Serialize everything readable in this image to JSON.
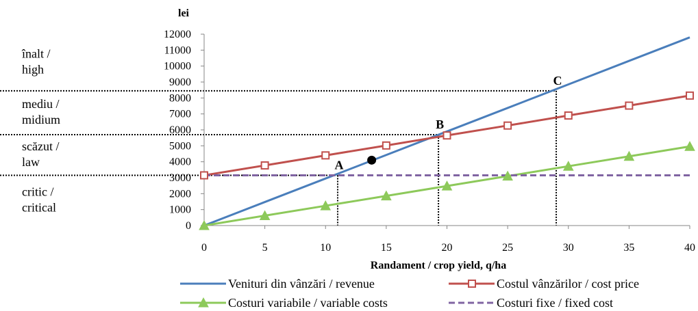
{
  "chart_data": {
    "type": "line",
    "ylabel": "lei",
    "xlabel": "Randament / crop yield, q/ha",
    "xlim": [
      0,
      40
    ],
    "ylim": [
      0,
      12000
    ],
    "xticks": [
      0,
      5,
      10,
      15,
      20,
      25,
      30,
      35,
      40
    ],
    "yticks": [
      0,
      1000,
      2000,
      3000,
      4000,
      5000,
      6000,
      7000,
      8000,
      9000,
      10000,
      11000,
      12000
    ],
    "x": [
      0,
      5,
      10,
      15,
      20,
      25,
      30,
      35,
      40
    ],
    "series": [
      {
        "name": "Venituri din vânzări / revenue",
        "values": [
          0,
          1475,
          2950,
          4425,
          5900,
          7375,
          8850,
          10325,
          11800
        ],
        "color": "#4A7EBB",
        "line_style": "solid",
        "marker": "none"
      },
      {
        "name": "Costul vânzărilor / cost price",
        "values": [
          3150,
          3770,
          4400,
          5020,
          5650,
          6270,
          6900,
          7520,
          8150
        ],
        "color": "#C0504D",
        "line_style": "solid",
        "marker": "square"
      },
      {
        "name": "Costuri variabile / variable costs",
        "values": [
          0,
          620,
          1240,
          1860,
          2480,
          3100,
          3720,
          4340,
          4960
        ],
        "color": "#8DC95A",
        "line_style": "solid",
        "marker": "triangle"
      },
      {
        "name": "Costuri fixe / fixed cost",
        "values": [
          3150,
          3150,
          3150,
          3150,
          3150,
          3150,
          3150,
          3150,
          3150
        ],
        "color": "#8064A2",
        "line_style": "dashed",
        "marker": "none"
      }
    ],
    "zones": [
      {
        "range": [
          8450,
          12000
        ],
        "lines": [
          "înalt /",
          "high"
        ]
      },
      {
        "range": [
          5700,
          8450
        ],
        "lines": [
          "mediu /",
          "midium"
        ]
      },
      {
        "range": [
          3150,
          5700
        ],
        "lines": [
          "scăzut /",
          "law"
        ]
      },
      {
        "range": [
          0,
          3150
        ],
        "lines": [
          "critic /",
          "critical"
        ]
      }
    ],
    "points": [
      {
        "label": "A",
        "x": 11,
        "y": 3150
      },
      {
        "label": "B",
        "x": 19.3,
        "y": 5700
      },
      {
        "label": "C",
        "x": 29,
        "y": 8450
      }
    ],
    "marker_point": {
      "x": 13.8,
      "y": 4100
    },
    "grid": false,
    "legend": "bottom"
  }
}
